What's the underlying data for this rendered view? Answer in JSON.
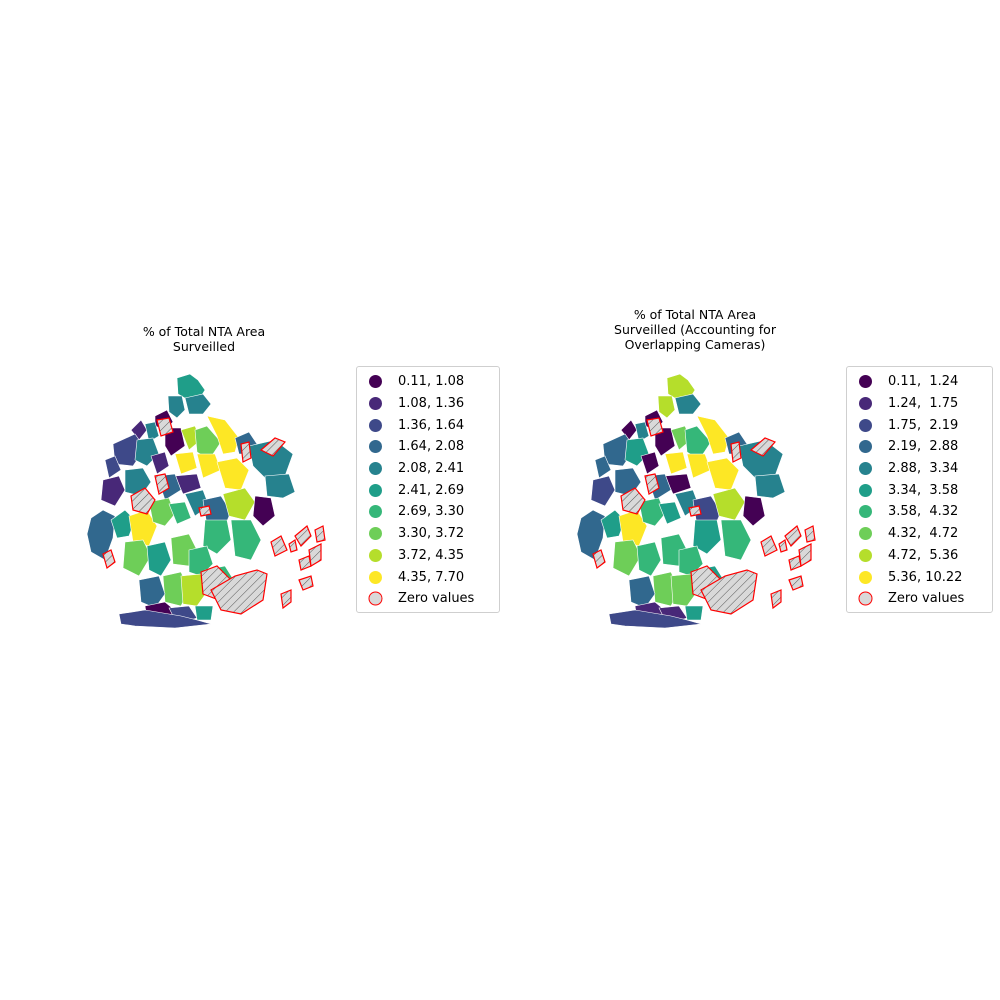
{
  "figures": [
    {
      "title": "% of Total NTA Area\nSurveilled",
      "legend": [
        {
          "label": "0.11, 1.08",
          "color": "#440154"
        },
        {
          "label": "1.08, 1.36",
          "color": "#482878"
        },
        {
          "label": "1.36, 1.64",
          "color": "#3e4989"
        },
        {
          "label": "1.64, 2.08",
          "color": "#31688e"
        },
        {
          "label": "2.08, 2.41",
          "color": "#26828e"
        },
        {
          "label": "2.41, 2.69",
          "color": "#1f9e89"
        },
        {
          "label": "2.69, 3.30",
          "color": "#35b779"
        },
        {
          "label": "3.30, 3.72",
          "color": "#6ece58"
        },
        {
          "label": "3.72, 4.35",
          "color": "#b5de2b"
        },
        {
          "label": "4.35, 7.70",
          "color": "#fde725"
        },
        {
          "label": "Zero values",
          "color": "#d9d9d9",
          "edge": "#ff0000"
        }
      ]
    },
    {
      "title": "% of Total NTA Area\nSurveilled (Accounting for\nOverlapping Cameras)",
      "legend": [
        {
          "label": "0.11,  1.24",
          "color": "#440154"
        },
        {
          "label": "1.24,  1.75",
          "color": "#482878"
        },
        {
          "label": "1.75,  2.19",
          "color": "#3e4989"
        },
        {
          "label": "2.19,  2.88",
          "color": "#31688e"
        },
        {
          "label": "2.88,  3.34",
          "color": "#26828e"
        },
        {
          "label": "3.34,  3.58",
          "color": "#1f9e89"
        },
        {
          "label": "3.58,  4.32",
          "color": "#35b779"
        },
        {
          "label": "4.32,  4.72",
          "color": "#6ece58"
        },
        {
          "label": "4.72,  5.36",
          "color": "#b5de2b"
        },
        {
          "label": "5.36, 10.22",
          "color": "#fde725"
        },
        {
          "label": "Zero values",
          "color": "#d9d9d9",
          "edge": "#ff0000"
        }
      ]
    }
  ]
}
